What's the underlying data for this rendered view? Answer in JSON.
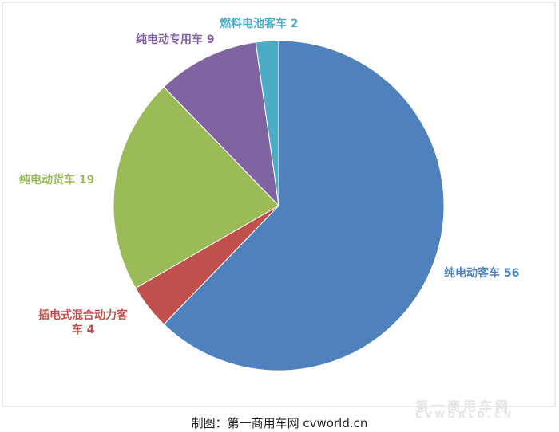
{
  "chart_data": {
    "type": "pie",
    "categories": [
      "纯电动客车",
      "插电式混合动力客车",
      "纯电动货车",
      "纯电动专用车",
      "燃料电池客车"
    ],
    "values": [
      56,
      4,
      19,
      9,
      2
    ],
    "colors": [
      "#4f81bd",
      "#c0504d",
      "#9bbb59",
      "#8064a2",
      "#4bacc6"
    ],
    "label_colors": [
      "#4f81bd",
      "#c0504d",
      "#9bbb59",
      "#8064a2",
      "#4bacc6"
    ]
  },
  "footer": "制图：第一商用车网 cvworld.cn",
  "watermark": {
    "name": "第一商用车网",
    "url": "CVWORLD.CN"
  }
}
